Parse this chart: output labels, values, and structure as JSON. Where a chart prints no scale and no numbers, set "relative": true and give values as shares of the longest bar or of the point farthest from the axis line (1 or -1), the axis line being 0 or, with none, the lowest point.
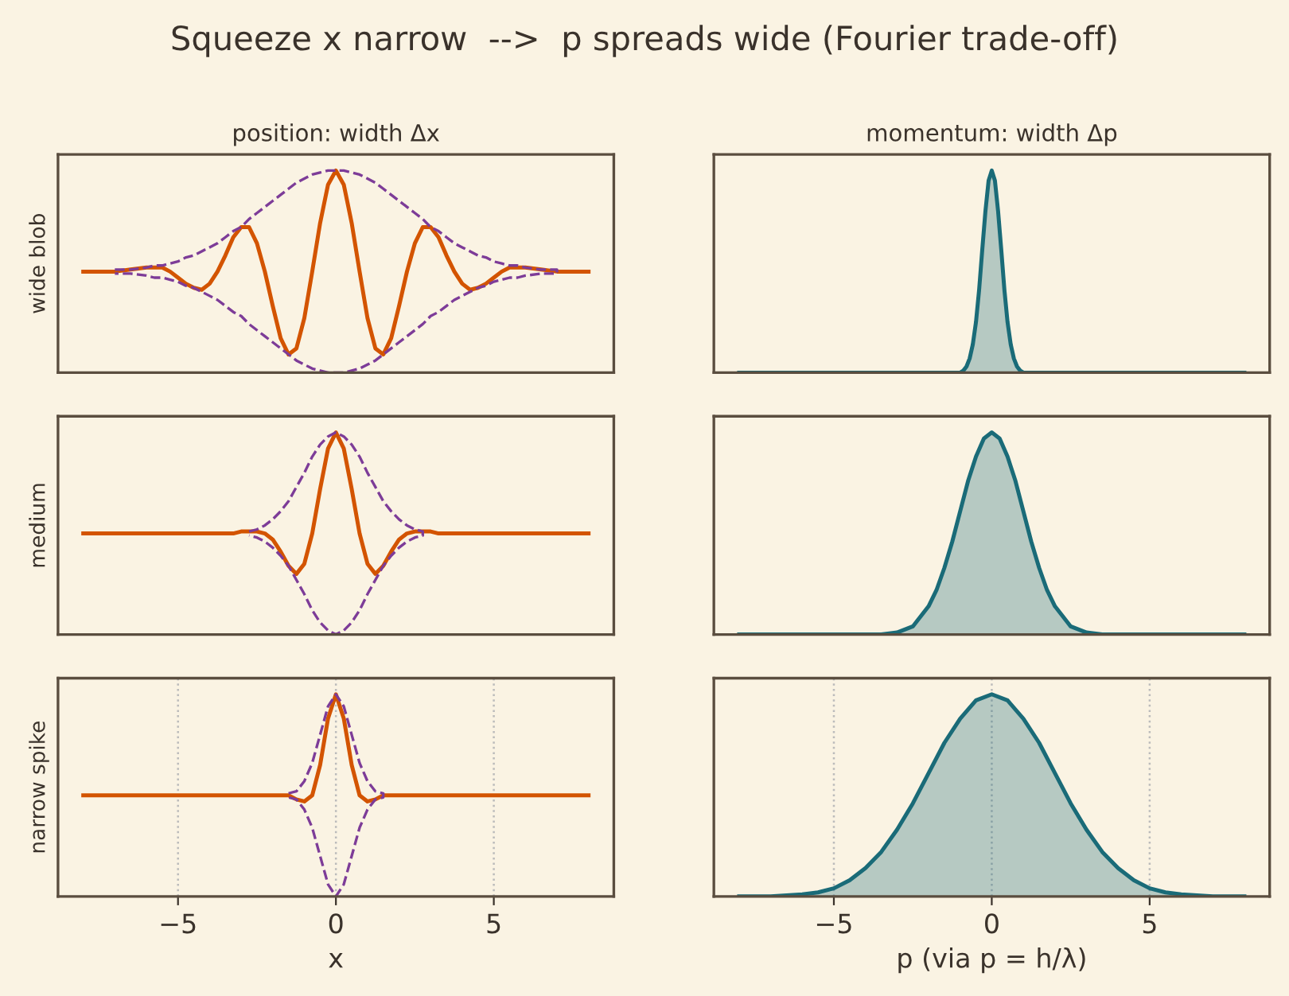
{
  "chart_data": [
    {
      "type": "line",
      "title": "position: width Δx",
      "ylabel": "wide blob",
      "annotations": [
        "Squeeze x narrow  -->  p spreads wide (Fourier trade-off)"
      ],
      "relative": true,
      "xlim": [
        -8.8,
        8.8
      ],
      "tick_labels": false,
      "x": [
        -8,
        -7.5,
        -7,
        -6.5,
        -6,
        -5.75,
        -5.5,
        -5.25,
        -5,
        -4.75,
        -4.5,
        -4.25,
        -4,
        -3.75,
        -3.5,
        -3.25,
        -3,
        -2.75,
        -2.5,
        -2.25,
        -2,
        -1.75,
        -1.5,
        -1.25,
        -1,
        -0.75,
        -0.5,
        -0.25,
        0,
        0.25,
        0.5,
        0.75,
        1,
        1.25,
        1.5,
        1.75,
        2,
        2.25,
        2.5,
        2.75,
        3,
        3.25,
        3.5,
        3.75,
        4,
        4.25,
        4.5,
        4.75,
        5,
        5.25,
        5.5,
        5.75,
        6,
        6.5,
        7,
        7.5,
        8
      ],
      "series": [
        {
          "color": "#d35400",
          "line_style": "solid",
          "values": [
            0.5,
            0.5,
            0.5,
            0.51,
            0.52,
            0.52,
            0.52,
            0.5,
            0.47,
            0.44,
            0.42,
            0.41,
            0.44,
            0.5,
            0.58,
            0.67,
            0.72,
            0.72,
            0.64,
            0.5,
            0.33,
            0.17,
            0.09,
            0.12,
            0.27,
            0.5,
            0.74,
            0.93,
            1,
            0.93,
            0.74,
            0.5,
            0.27,
            0.12,
            0.09,
            0.17,
            0.33,
            0.5,
            0.64,
            0.72,
            0.72,
            0.67,
            0.58,
            0.5,
            0.44,
            0.41,
            0.42,
            0.44,
            0.47,
            0.5,
            0.52,
            0.52,
            0.52,
            0.51,
            0.5,
            0.5,
            0.5
          ]
        },
        {
          "color": "#7d3c98",
          "line_style": "dashed",
          "x": [
            -7,
            -6.5,
            -6,
            -5.75,
            -5.5,
            -5.25,
            -5,
            -4.75,
            -4.5,
            -4.25,
            -4,
            -3.75,
            -3.5,
            -3.25,
            -3,
            -2.75,
            -2.5,
            -2.25,
            -2,
            -1.75,
            -1.5,
            -1.25,
            -1,
            -0.75,
            -0.5,
            -0.25,
            0,
            0.25,
            0.5,
            0.75,
            1,
            1.25,
            1.5,
            1.75,
            2,
            2.25,
            2.5,
            2.75,
            3,
            3.25,
            3.5,
            3.75,
            4,
            4.25,
            4.5,
            4.75,
            5,
            5.25,
            5.5,
            5.75,
            6,
            6.5,
            7,
            7,
            6.5,
            6,
            5.75,
            5.5,
            5.25,
            5,
            4.75,
            4.5,
            4.25,
            4,
            3.75,
            3.5,
            3.25,
            3,
            2.75,
            2.5,
            2.25,
            2,
            1.75,
            1.5,
            1.25,
            1,
            0.75,
            0.5,
            0.25,
            0,
            -0.25,
            -0.5,
            -0.75,
            -1,
            -1.25,
            -1.5,
            -1.75,
            -2,
            -2.25,
            -2.5,
            -2.75,
            -3,
            -3.25,
            -3.5,
            -3.75,
            -4,
            -4.25,
            -4.5,
            -4.75,
            -5,
            -5.25,
            -5.5,
            -5.75,
            -6,
            -6.5,
            -7
          ],
          "values": [
            0.51,
            0.51,
            0.52,
            0.53,
            0.53,
            0.54,
            0.55,
            0.57,
            0.58,
            0.6,
            0.62,
            0.64,
            0.67,
            0.7,
            0.72,
            0.76,
            0.79,
            0.82,
            0.85,
            0.88,
            0.91,
            0.94,
            0.96,
            0.98,
            0.99,
            1,
            1,
            1,
            0.99,
            0.98,
            0.96,
            0.94,
            0.91,
            0.88,
            0.85,
            0.82,
            0.79,
            0.76,
            0.72,
            0.7,
            0.67,
            0.64,
            0.62,
            0.6,
            0.58,
            0.57,
            0.55,
            0.54,
            0.53,
            0.53,
            0.52,
            0.51,
            0.51,
            0.49,
            0.49,
            0.48,
            0.47,
            0.47,
            0.46,
            0.45,
            0.43,
            0.42,
            0.4,
            0.38,
            0.36,
            0.33,
            0.3,
            0.28,
            0.24,
            0.21,
            0.18,
            0.15,
            0.12,
            0.09,
            0.06,
            0.04,
            0.02,
            0.01,
            0,
            0,
            0,
            0.01,
            0.02,
            0.04,
            0.06,
            0.09,
            0.12,
            0.15,
            0.18,
            0.21,
            0.24,
            0.28,
            0.3,
            0.33,
            0.36,
            0.38,
            0.4,
            0.42,
            0.43,
            0.45,
            0.46,
            0.47,
            0.47,
            0.48,
            0.49,
            0.49
          ]
        }
      ]
    },
    {
      "type": "area",
      "title": "momentum: width Δp",
      "relative": true,
      "xlim": [
        -8.8,
        8.8
      ],
      "tick_labels": false,
      "x": [
        -8,
        -6,
        -4,
        -2,
        -1.2,
        -1,
        -0.9,
        -0.8,
        -0.7,
        -0.6,
        -0.5,
        -0.4,
        -0.3,
        -0.2,
        -0.1,
        0,
        0.1,
        0.2,
        0.3,
        0.4,
        0.5,
        0.6,
        0.7,
        0.8,
        0.9,
        1,
        1.2,
        2,
        4,
        6,
        8
      ],
      "series": [
        {
          "color": "#1a6b78",
          "values": [
            0,
            0,
            0,
            0,
            0,
            0,
            0.01,
            0.03,
            0.07,
            0.14,
            0.25,
            0.41,
            0.61,
            0.8,
            0.95,
            1,
            0.95,
            0.8,
            0.61,
            0.41,
            0.25,
            0.14,
            0.07,
            0.03,
            0.01,
            0,
            0,
            0,
            0,
            0,
            0
          ]
        }
      ]
    },
    {
      "type": "line",
      "ylabel": "medium",
      "relative": true,
      "xlim": [
        -8.8,
        8.8
      ],
      "tick_labels": false,
      "x": [
        -8,
        -6,
        -4,
        -3.5,
        -3.25,
        -3,
        -2.75,
        -2.5,
        -2.25,
        -2,
        -1.75,
        -1.5,
        -1.25,
        -1,
        -0.75,
        -0.5,
        -0.25,
        0,
        0.25,
        0.5,
        0.75,
        1,
        1.25,
        1.5,
        1.75,
        2,
        2.25,
        2.5,
        2.75,
        3,
        3.25,
        3.5,
        4,
        6,
        8
      ],
      "series": [
        {
          "color": "#d35400",
          "line_style": "solid",
          "values": [
            0.5,
            0.5,
            0.5,
            0.5,
            0.5,
            0.51,
            0.51,
            0.51,
            0.5,
            0.47,
            0.41,
            0.34,
            0.3,
            0.35,
            0.5,
            0.72,
            0.92,
            1,
            0.92,
            0.72,
            0.5,
            0.35,
            0.3,
            0.34,
            0.41,
            0.47,
            0.5,
            0.51,
            0.51,
            0.51,
            0.5,
            0.5,
            0.5,
            0.5,
            0.5
          ]
        },
        {
          "color": "#7d3c98",
          "line_style": "dashed",
          "x": [
            -2.75,
            -2.5,
            -2.25,
            -2,
            -1.75,
            -1.5,
            -1.25,
            -1,
            -0.75,
            -0.5,
            -0.25,
            0,
            0.25,
            0.5,
            0.75,
            1,
            1.25,
            1.5,
            1.75,
            2,
            2.25,
            2.5,
            2.75,
            2.75,
            2.5,
            2.25,
            2,
            1.75,
            1.5,
            1.25,
            1,
            0.75,
            0.5,
            0.25,
            0,
            -0.25,
            -0.5,
            -0.75,
            -1,
            -1.25,
            -1.5,
            -1.75,
            -2,
            -2.25,
            -2.5,
            -2.75
          ],
          "values": [
            0.51,
            0.52,
            0.54,
            0.57,
            0.61,
            0.66,
            0.73,
            0.8,
            0.88,
            0.94,
            0.98,
            1,
            0.98,
            0.94,
            0.88,
            0.8,
            0.73,
            0.66,
            0.61,
            0.57,
            0.54,
            0.52,
            0.51,
            0.49,
            0.48,
            0.46,
            0.43,
            0.39,
            0.34,
            0.27,
            0.2,
            0.12,
            0.06,
            0.02,
            0,
            0.02,
            0.06,
            0.12,
            0.2,
            0.27,
            0.34,
            0.39,
            0.43,
            0.46,
            0.48,
            0.49
          ]
        }
      ]
    },
    {
      "type": "area",
      "relative": true,
      "xlim": [
        -8.8,
        8.8
      ],
      "tick_labels": false,
      "x": [
        -8,
        -6,
        -4,
        -3.5,
        -3,
        -2.5,
        -2,
        -1.75,
        -1.5,
        -1.25,
        -1,
        -0.75,
        -0.5,
        -0.25,
        0,
        0.25,
        0.5,
        0.75,
        1,
        1.25,
        1.5,
        1.75,
        2,
        2.5,
        3,
        3.5,
        4,
        6,
        8
      ],
      "series": [
        {
          "color": "#1a6b78",
          "values": [
            0,
            0,
            0,
            0,
            0.01,
            0.04,
            0.14,
            0.22,
            0.33,
            0.46,
            0.61,
            0.76,
            0.88,
            0.97,
            1,
            0.97,
            0.88,
            0.76,
            0.61,
            0.46,
            0.33,
            0.22,
            0.14,
            0.04,
            0.01,
            0,
            0,
            0,
            0
          ]
        }
      ]
    },
    {
      "type": "line",
      "ylabel": "narrow spike",
      "xlabel": "x",
      "relative": true,
      "xlim": [
        -8.8,
        8.8
      ],
      "xticks": [
        {
          "value": -5,
          "label": "−5"
        },
        0,
        5
      ],
      "tick_labels": "x",
      "grid": "x",
      "x": [
        -8,
        -5,
        -3,
        -2,
        -1.75,
        -1.5,
        -1.25,
        -1,
        -0.75,
        -0.5,
        -0.25,
        0,
        0.25,
        0.5,
        0.75,
        1,
        1.25,
        1.5,
        1.75,
        2,
        3,
        5,
        8
      ],
      "series": [
        {
          "color": "#d35400",
          "line_style": "solid",
          "values": [
            0.5,
            0.5,
            0.5,
            0.5,
            0.5,
            0.5,
            0.48,
            0.47,
            0.5,
            0.65,
            0.88,
            1,
            0.88,
            0.65,
            0.5,
            0.47,
            0.48,
            0.5,
            0.5,
            0.5,
            0.5,
            0.5,
            0.5
          ]
        },
        {
          "color": "#7d3c98",
          "line_style": "dashed",
          "x": [
            -1.5,
            -1.25,
            -1,
            -0.75,
            -0.5,
            -0.25,
            0,
            0.25,
            0.5,
            0.75,
            1,
            1.25,
            1.5,
            1.5,
            1.25,
            1,
            0.75,
            0.5,
            0.25,
            0,
            -0.25,
            -0.5,
            -0.75,
            -1,
            -1.25,
            -1.5
          ],
          "values": [
            0.51,
            0.52,
            0.57,
            0.66,
            0.8,
            0.94,
            1,
            0.94,
            0.8,
            0.66,
            0.57,
            0.52,
            0.51,
            0.49,
            0.48,
            0.43,
            0.34,
            0.2,
            0.06,
            0,
            0.06,
            0.2,
            0.34,
            0.43,
            0.48,
            0.49
          ]
        }
      ]
    },
    {
      "type": "area",
      "xlabel": "p (via p = h/λ)",
      "relative": true,
      "xlim": [
        -8.8,
        8.8
      ],
      "xticks": [
        {
          "value": -5,
          "label": "−5"
        },
        0,
        5
      ],
      "tick_labels": "x",
      "grid": "x",
      "x": [
        -8,
        -7,
        -6,
        -5.5,
        -5,
        -4.5,
        -4,
        -3.5,
        -3,
        -2.5,
        -2,
        -1.5,
        -1,
        -0.5,
        0,
        0.5,
        1,
        1.5,
        2,
        2.5,
        3,
        3.5,
        4,
        4.5,
        5,
        5.5,
        6,
        7,
        8
      ],
      "series": [
        {
          "color": "#1a6b78",
          "values": [
            0,
            0,
            0.01,
            0.02,
            0.04,
            0.08,
            0.14,
            0.22,
            0.33,
            0.46,
            0.61,
            0.76,
            0.88,
            0.97,
            1,
            0.97,
            0.88,
            0.76,
            0.61,
            0.46,
            0.33,
            0.22,
            0.14,
            0.08,
            0.04,
            0.02,
            0.01,
            0,
            0
          ]
        }
      ]
    }
  ]
}
